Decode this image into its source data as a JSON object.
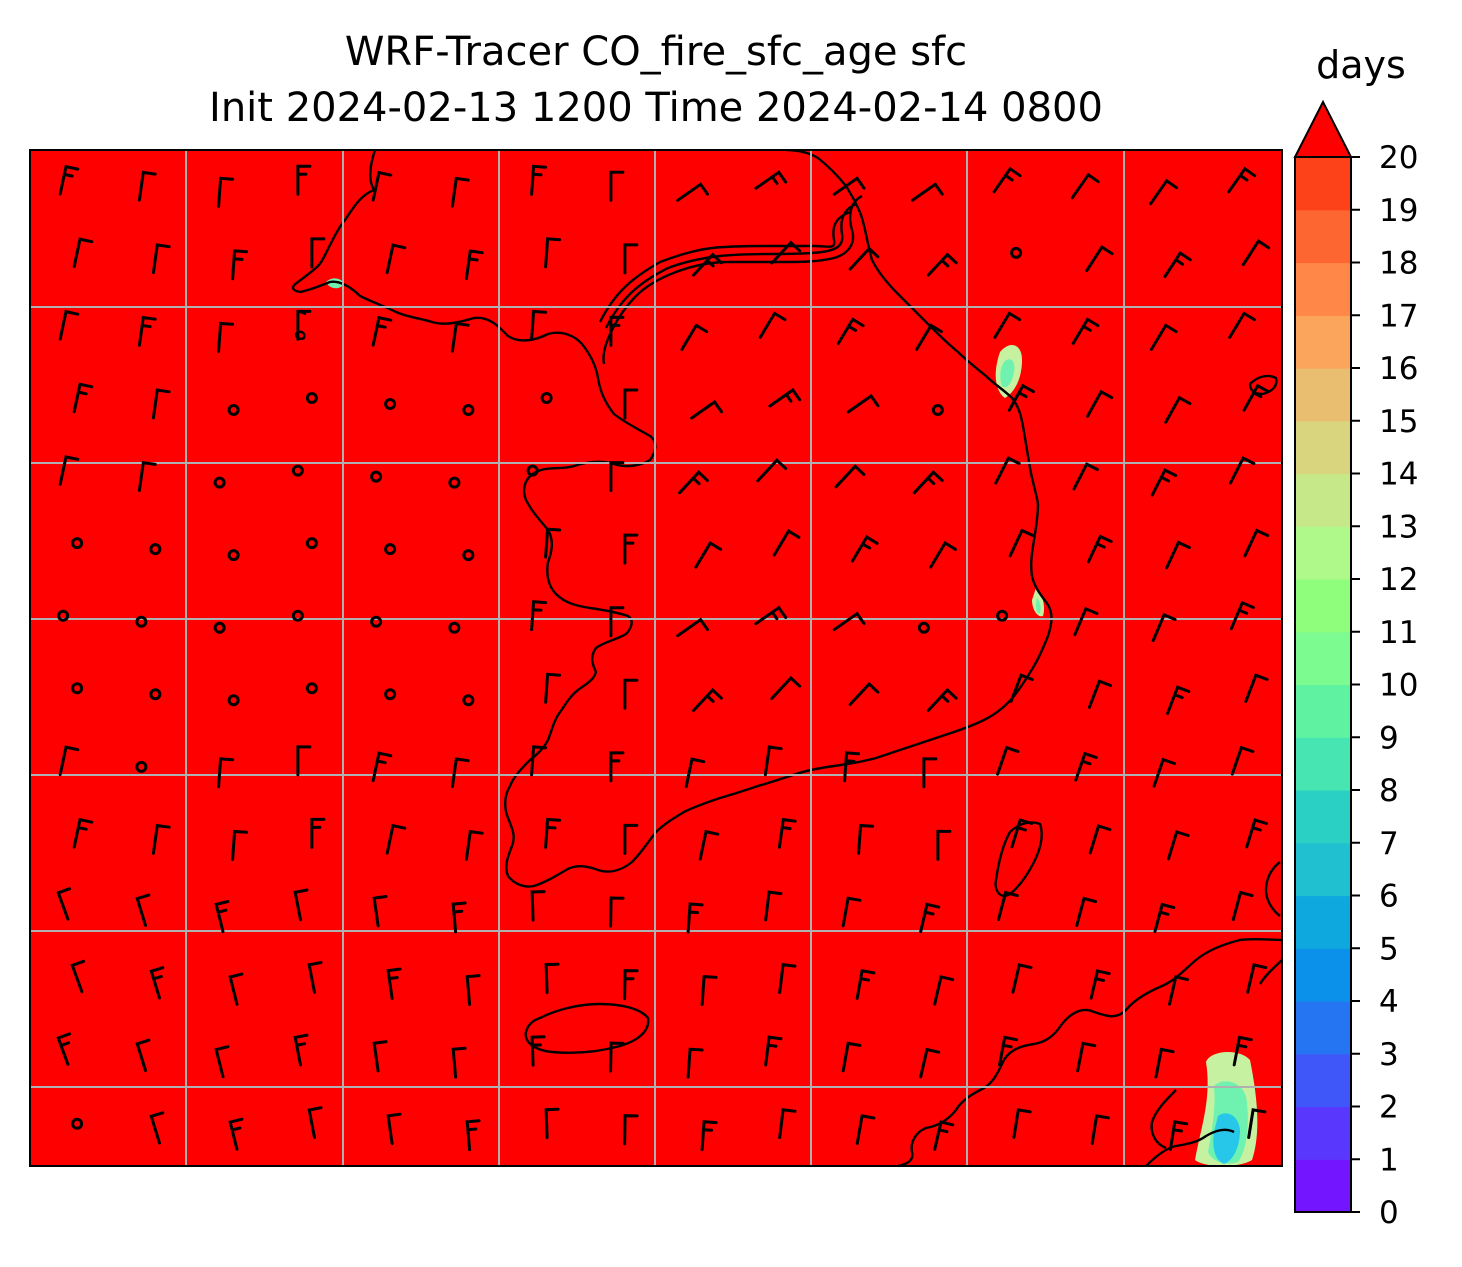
{
  "title": {
    "line1": "WRF-Tracer CO_fire_sfc_age sfc",
    "line2": "Init 2024-02-13 1200 Time 2024-02-14 0800"
  },
  "colorbar": {
    "unit": "days",
    "ticks": [
      "0",
      "1",
      "2",
      "3",
      "4",
      "5",
      "6",
      "7",
      "8",
      "9",
      "10",
      "11",
      "12",
      "13",
      "14",
      "15",
      "16",
      "17",
      "18",
      "19",
      "20"
    ],
    "extend": "max",
    "colors": [
      "#7316ff",
      "#5937fd",
      "#3f57f9",
      "#2575f2",
      "#0b91ea",
      "#0fa8de",
      "#21c0d1",
      "#29d0c3",
      "#46e5b2",
      "#5ff2a1",
      "#7bfb90",
      "#8ffe7d",
      "#aef98a",
      "#c7e889",
      "#d8d57e",
      "#eabe70",
      "#fba45c",
      "#ff8747",
      "#fe6631",
      "#fd4118",
      "#ff1a0a"
    ],
    "over_color": "#ff0000"
  },
  "map": {
    "background_field_color": "#ff0000",
    "coastline_color": "#000000",
    "gridline_color": "#b0b0b0",
    "plume_colors": {
      "young": "#26c7e8",
      "mid": "#6ff2b0",
      "old": "#c6f1a0"
    }
  }
}
